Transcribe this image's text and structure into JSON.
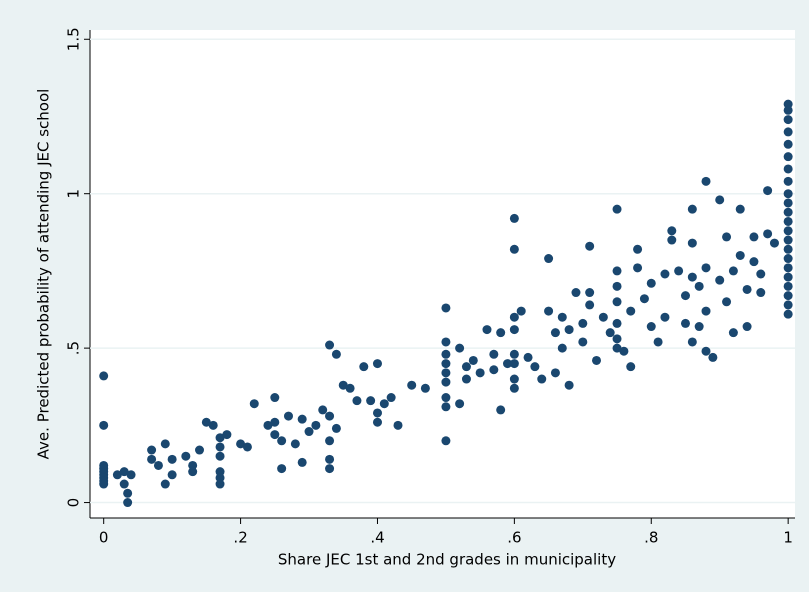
{
  "chart_data": {
    "type": "scatter",
    "xlabel": "Share JEC 1st and 2nd grades in municipality",
    "ylabel": "Ave. Predicted probability of attending JEC school",
    "color": "#1a476f",
    "grid": true,
    "xlim": [
      -0.02,
      1.01
    ],
    "ylim": [
      -0.05,
      1.53
    ],
    "xticks": [
      0,
      {
        "value": 0.2,
        "label": ".2"
      },
      {
        "value": 0.4,
        "label": ".4"
      },
      {
        "value": 0.6,
        "label": ".6"
      },
      {
        "value": 0.8,
        "label": ".8"
      },
      1
    ],
    "yticks": [
      0,
      {
        "value": 0.5,
        "label": ".5"
      },
      1,
      1.5
    ],
    "x": [
      0,
      0,
      0,
      0,
      0,
      0,
      0,
      0,
      0,
      0.02,
      0.03,
      0.035,
      0.035,
      0.04,
      0.03,
      0.07,
      0.07,
      0.08,
      0.09,
      0.09,
      0.1,
      0.1,
      0.12,
      0.13,
      0.13,
      0.14,
      0.15,
      0.16,
      0.17,
      0.17,
      0.17,
      0.17,
      0.17,
      0.17,
      0.18,
      0.2,
      0.21,
      0.22,
      0.24,
      0.25,
      0.25,
      0.25,
      0.26,
      0.26,
      0.27,
      0.28,
      0.29,
      0.29,
      0.3,
      0.31,
      0.32,
      0.33,
      0.33,
      0.33,
      0.33,
      0.33,
      0.34,
      0.34,
      0.35,
      0.36,
      0.37,
      0.38,
      0.39,
      0.4,
      0.4,
      0.4,
      0.41,
      0.42,
      0.43,
      0.45,
      0.47,
      0.5,
      0.5,
      0.5,
      0.5,
      0.5,
      0.5,
      0.5,
      0.5,
      0.5,
      0.52,
      0.52,
      0.53,
      0.53,
      0.54,
      0.55,
      0.56,
      0.57,
      0.57,
      0.58,
      0.58,
      0.59,
      0.6,
      0.6,
      0.6,
      0.6,
      0.6,
      0.6,
      0.6,
      0.6,
      0.61,
      0.62,
      0.63,
      0.64,
      0.65,
      0.65,
      0.66,
      0.66,
      0.67,
      0.67,
      0.68,
      0.68,
      0.69,
      0.7,
      0.7,
      0.71,
      0.71,
      0.71,
      0.72,
      0.73,
      0.74,
      0.75,
      0.75,
      0.75,
      0.75,
      0.75,
      0.75,
      0.75,
      0.76,
      0.77,
      0.77,
      0.78,
      0.78,
      0.79,
      0.8,
      0.8,
      0.81,
      0.82,
      0.82,
      0.83,
      0.83,
      0.84,
      0.85,
      0.85,
      0.86,
      0.86,
      0.86,
      0.86,
      0.87,
      0.87,
      0.88,
      0.88,
      0.88,
      0.88,
      0.89,
      0.9,
      0.9,
      0.91,
      0.91,
      0.92,
      0.92,
      0.93,
      0.93,
      0.94,
      0.94,
      0.95,
      0.95,
      0.96,
      0.96,
      0.97,
      0.97,
      0.98,
      1,
      1,
      1,
      1,
      1,
      1,
      1,
      1,
      1,
      1,
      1,
      1,
      1,
      1,
      1,
      1,
      1,
      1,
      1,
      1,
      1,
      1
    ],
    "values": [
      0.41,
      0.25,
      0.12,
      0.1,
      0.09,
      0.08,
      0.07,
      0.06,
      0.11,
      0.09,
      0.06,
      0.0,
      0.03,
      0.09,
      0.1,
      0.17,
      0.14,
      0.12,
      0.19,
      0.06,
      0.14,
      0.09,
      0.15,
      0.1,
      0.12,
      0.17,
      0.26,
      0.25,
      0.21,
      0.18,
      0.15,
      0.1,
      0.08,
      0.06,
      0.22,
      0.19,
      0.18,
      0.32,
      0.25,
      0.34,
      0.22,
      0.26,
      0.2,
      0.11,
      0.28,
      0.19,
      0.13,
      0.27,
      0.23,
      0.25,
      0.3,
      0.28,
      0.2,
      0.14,
      0.11,
      0.51,
      0.48,
      0.24,
      0.38,
      0.37,
      0.33,
      0.44,
      0.33,
      0.45,
      0.29,
      0.26,
      0.32,
      0.34,
      0.25,
      0.38,
      0.37,
      0.63,
      0.52,
      0.48,
      0.45,
      0.42,
      0.39,
      0.34,
      0.31,
      0.2,
      0.5,
      0.32,
      0.44,
      0.4,
      0.46,
      0.42,
      0.56,
      0.43,
      0.48,
      0.55,
      0.3,
      0.45,
      0.92,
      0.82,
      0.6,
      0.56,
      0.48,
      0.45,
      0.4,
      0.37,
      0.62,
      0.47,
      0.44,
      0.4,
      0.62,
      0.79,
      0.55,
      0.42,
      0.6,
      0.5,
      0.56,
      0.38,
      0.68,
      0.58,
      0.52,
      0.83,
      0.68,
      0.64,
      0.46,
      0.6,
      0.55,
      0.95,
      0.75,
      0.7,
      0.65,
      0.58,
      0.53,
      0.5,
      0.49,
      0.62,
      0.44,
      0.82,
      0.76,
      0.66,
      0.71,
      0.57,
      0.52,
      0.74,
      0.6,
      0.85,
      0.88,
      0.75,
      0.58,
      0.67,
      0.95,
      0.84,
      0.73,
      0.52,
      0.57,
      0.7,
      1.04,
      0.76,
      0.62,
      0.49,
      0.47,
      0.72,
      0.98,
      0.86,
      0.65,
      0.55,
      0.75,
      0.95,
      0.8,
      0.69,
      0.57,
      0.86,
      0.78,
      0.68,
      0.74,
      1.01,
      0.87,
      0.84,
      1.29,
      1.27,
      1.24,
      1.2,
      1.16,
      1.12,
      1.08,
      1.04,
      1.0,
      0.97,
      0.94,
      0.91,
      0.88,
      0.85,
      0.82,
      0.79,
      0.76,
      0.73,
      0.7,
      0.67,
      0.64,
      0.61
    ]
  }
}
